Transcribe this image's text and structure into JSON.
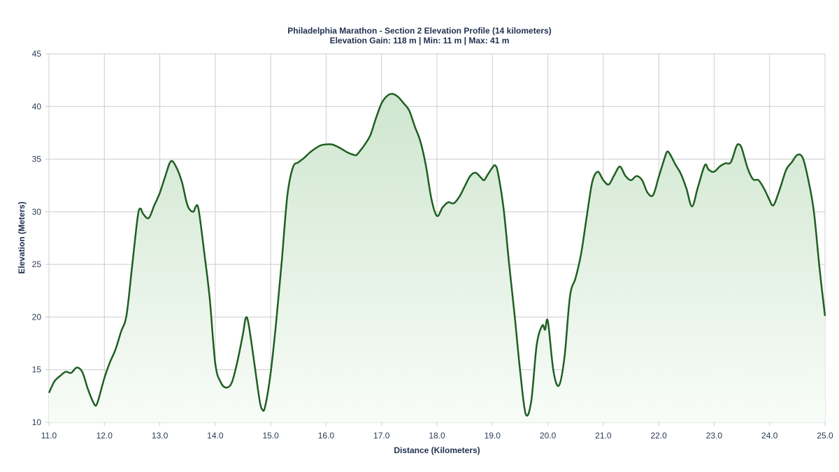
{
  "chart": {
    "title": "Philadelphia Marathon - Section 2 Elevation Profile (14 kilometers)",
    "subtitle": "Elevation Gain: 118 m | Min: 11 m | Max: 41 m",
    "xlabel": "Distance (Kilometers)",
    "ylabel": "Elevation (Meters)",
    "colors": {
      "line": "#1f5f22",
      "fill_top": "#cfe6cf",
      "fill_bottom": "#f8fcf8",
      "grid": "#cccccc",
      "text": "#1f2f4f"
    }
  },
  "chart_data": {
    "type": "area",
    "title": "Philadelphia Marathon - Section 2 Elevation Profile (14 kilometers)",
    "subtitle": "Elevation Gain: 118 m | Min: 11 m | Max: 41 m",
    "xlabel": "Distance (Kilometers)",
    "ylabel": "Elevation (Meters)",
    "xlim": [
      11.0,
      25.0
    ],
    "ylim": [
      10,
      45
    ],
    "x_ticks": [
      "11.0",
      "12.0",
      "13.0",
      "14.0",
      "15.0",
      "16.0",
      "17.0",
      "18.0",
      "19.0",
      "20.0",
      "21.0",
      "22.0",
      "23.0",
      "24.0",
      "25.0"
    ],
    "y_ticks": [
      "10",
      "15",
      "20",
      "25",
      "30",
      "35",
      "40",
      "45"
    ],
    "grid": true,
    "legend": null,
    "series": [
      {
        "name": "Elevation",
        "x": [
          11.0,
          11.1,
          11.2,
          11.3,
          11.4,
          11.5,
          11.6,
          11.7,
          11.8,
          11.85,
          11.9,
          12.0,
          12.1,
          12.2,
          12.3,
          12.4,
          12.5,
          12.6,
          12.65,
          12.7,
          12.8,
          12.9,
          13.0,
          13.1,
          13.2,
          13.3,
          13.4,
          13.5,
          13.6,
          13.65,
          13.7,
          13.8,
          13.9,
          14.0,
          14.1,
          14.2,
          14.3,
          14.4,
          14.5,
          14.55,
          14.6,
          14.7,
          14.8,
          14.85,
          14.9,
          15.0,
          15.1,
          15.2,
          15.3,
          15.4,
          15.5,
          15.6,
          15.7,
          15.8,
          15.9,
          16.0,
          16.1,
          16.2,
          16.3,
          16.4,
          16.5,
          16.55,
          16.6,
          16.7,
          16.8,
          16.9,
          17.0,
          17.1,
          17.2,
          17.3,
          17.4,
          17.5,
          17.6,
          17.7,
          17.8,
          17.9,
          18.0,
          18.1,
          18.2,
          18.3,
          18.4,
          18.5,
          18.6,
          18.7,
          18.8,
          18.85,
          18.9,
          19.0,
          19.05,
          19.1,
          19.2,
          19.3,
          19.4,
          19.5,
          19.6,
          19.7,
          19.8,
          19.9,
          19.95,
          20.0,
          20.1,
          20.2,
          20.3,
          20.4,
          20.5,
          20.6,
          20.7,
          20.8,
          20.9,
          21.0,
          21.1,
          21.2,
          21.3,
          21.4,
          21.5,
          21.6,
          21.7,
          21.8,
          21.9,
          22.0,
          22.1,
          22.15,
          22.2,
          22.3,
          22.4,
          22.5,
          22.6,
          22.7,
          22.8,
          22.85,
          22.9,
          23.0,
          23.1,
          23.2,
          23.3,
          23.4,
          23.45,
          23.5,
          23.6,
          23.7,
          23.8,
          23.9,
          24.0,
          24.05,
          24.1,
          24.2,
          24.3,
          24.4,
          24.5,
          24.6,
          24.7,
          24.8,
          24.9,
          25.0
        ],
        "values": [
          12.8,
          13.9,
          14.4,
          14.8,
          14.7,
          15.2,
          14.8,
          13.2,
          11.9,
          11.6,
          12.3,
          14.2,
          15.7,
          16.9,
          18.6,
          20.2,
          24.8,
          29.5,
          30.3,
          29.8,
          29.4,
          30.6,
          31.8,
          33.4,
          34.8,
          34.2,
          32.8,
          30.6,
          30.0,
          30.5,
          30.2,
          26.2,
          21.8,
          15.6,
          13.8,
          13.3,
          13.8,
          15.8,
          18.4,
          19.9,
          19.4,
          15.8,
          12.1,
          11.2,
          11.5,
          14.7,
          19.6,
          25.3,
          31.5,
          34.2,
          34.7,
          35.1,
          35.6,
          36.0,
          36.3,
          36.4,
          36.4,
          36.2,
          35.9,
          35.6,
          35.4,
          35.4,
          35.7,
          36.4,
          37.3,
          38.9,
          40.3,
          41.0,
          41.2,
          40.9,
          40.3,
          39.6,
          38.1,
          36.7,
          34.4,
          31.2,
          29.6,
          30.4,
          30.9,
          30.8,
          31.4,
          32.4,
          33.4,
          33.7,
          33.2,
          33.0,
          33.4,
          34.2,
          34.4,
          33.7,
          30.4,
          25.1,
          20.2,
          14.9,
          10.8,
          12.0,
          17.4,
          19.2,
          18.8,
          19.6,
          14.9,
          13.5,
          16.2,
          22.0,
          23.7,
          26.0,
          29.5,
          32.8,
          33.8,
          33.0,
          32.6,
          33.5,
          34.3,
          33.4,
          33.0,
          33.4,
          33.0,
          31.8,
          31.6,
          33.3,
          35.0,
          35.7,
          35.5,
          34.5,
          33.6,
          32.2,
          30.5,
          32.2,
          34.0,
          34.5,
          34.0,
          33.8,
          34.3,
          34.6,
          34.7,
          36.2,
          36.4,
          36.0,
          34.2,
          33.1,
          33.0,
          32.2,
          31.1,
          30.6,
          30.9,
          32.4,
          34.0,
          34.7,
          35.4,
          35.1,
          33.0,
          30.0,
          24.7,
          20.1
        ]
      }
    ]
  }
}
